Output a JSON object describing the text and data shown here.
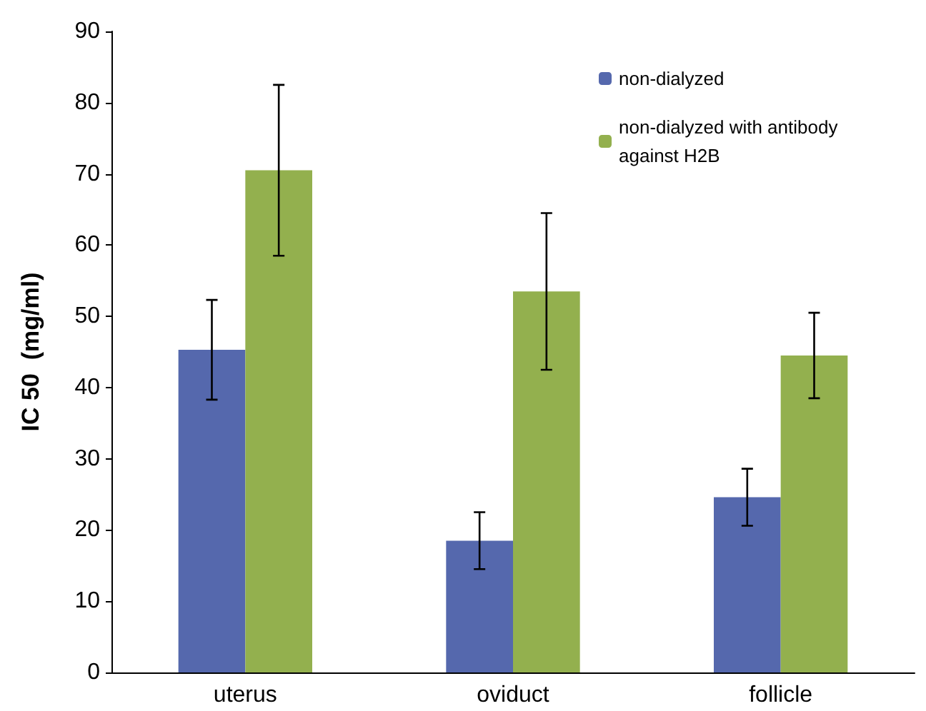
{
  "chart_data": {
    "type": "bar",
    "ylabel": "IC 50  (mg/ml)",
    "categories": [
      "uterus",
      "oviduct",
      "follicle"
    ],
    "series": [
      {
        "name": "non-dialyzed",
        "color": "#5568ad",
        "values": [
          45.3,
          18.5,
          24.6
        ],
        "errors": [
          7,
          4,
          4
        ]
      },
      {
        "name": "non-dialyzed with antibody against H2B",
        "color": "#93b04e",
        "values": [
          70.5,
          53.5,
          44.5
        ],
        "errors": [
          12,
          11,
          6
        ]
      }
    ],
    "ylim": [
      0,
      90
    ],
    "yticks": [
      0,
      10,
      20,
      30,
      40,
      50,
      60,
      70,
      80,
      90
    ],
    "grid": false,
    "legend": "top right"
  }
}
